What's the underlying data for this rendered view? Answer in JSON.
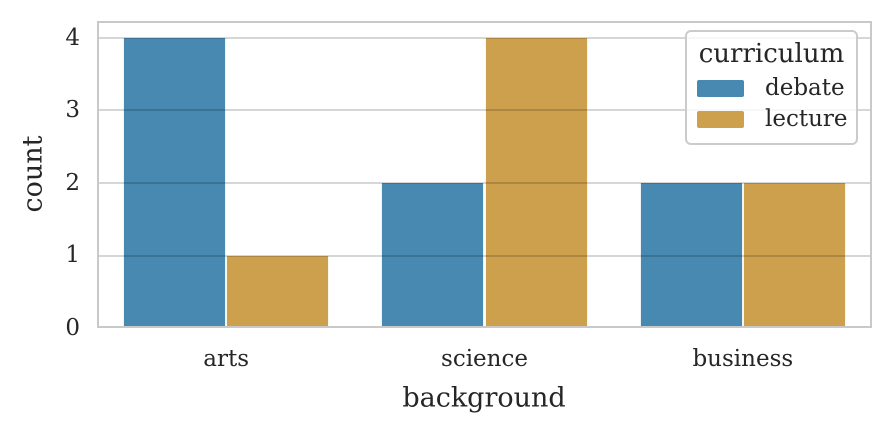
{
  "chart_data": {
    "type": "bar",
    "title": "",
    "categories": [
      "arts",
      "science",
      "business"
    ],
    "series": [
      {
        "name": "debate",
        "color": "#4889b2",
        "values": [
          4,
          2,
          2
        ]
      },
      {
        "name": "lecture",
        "color": "#cda04e",
        "values": [
          1,
          4,
          2
        ]
      }
    ],
    "xlabel": "background",
    "ylabel": "count",
    "yticks": [
      0,
      1,
      2,
      3,
      4
    ],
    "ylim": [
      0,
      4.234
    ],
    "grid": "horizontal-gridlines-over-bars",
    "bar_group_fraction": 0.8,
    "legend": {
      "title": "curriculum",
      "position": "upper-right",
      "entries": [
        "debate",
        "lecture"
      ]
    }
  },
  "colors": {
    "background": "#ffffff",
    "text": "#262626",
    "spine": "#c9c9c9",
    "grid": "rgba(0,0,0,0.16)",
    "debate": "#4889b2",
    "lecture": "#cda04e"
  }
}
